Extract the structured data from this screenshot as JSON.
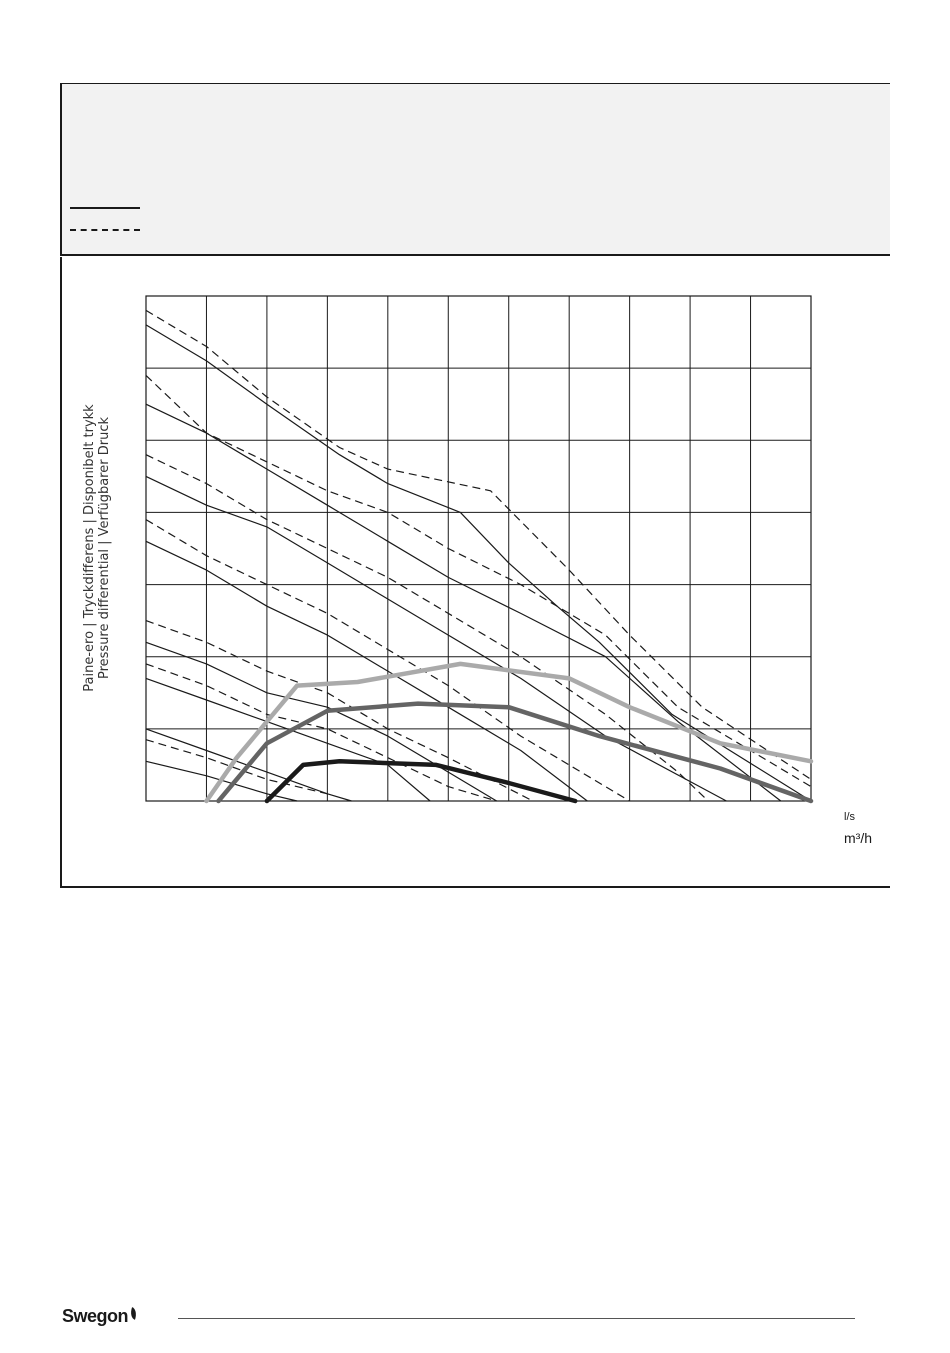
{
  "brand": {
    "name": "Swegon",
    "logo_icon": "leaf-icon"
  },
  "chart_data": {
    "type": "line",
    "title": "",
    "ylabel_lines": [
      "Paine-ero | Tryckdifferens | Disponibelt trykk",
      "Pressure differential | Verfügbarer Druck"
    ],
    "xlabel_units": [
      "l/s",
      "m³/h"
    ],
    "grid": true,
    "grid_columns": 11,
    "grid_rows": 7,
    "xlim": [
      0,
      11
    ],
    "ylim": [
      0,
      7
    ],
    "legend": [
      {
        "style": "solid",
        "label": ""
      },
      {
        "style": "dashed",
        "label": ""
      }
    ],
    "fan_curves": [
      {
        "style": "solid",
        "points": [
          [
            0,
            6.6
          ],
          [
            1.0,
            6.1
          ],
          [
            2.0,
            5.5
          ],
          [
            3.2,
            4.8
          ],
          [
            4.0,
            4.4
          ],
          [
            5.2,
            4.0
          ],
          [
            6.0,
            3.3
          ],
          [
            6.8,
            2.7
          ],
          [
            7.5,
            2.2
          ],
          [
            8.7,
            1.2
          ],
          [
            11.0,
            0
          ]
        ]
      },
      {
        "style": "dashed",
        "points": [
          [
            0,
            6.8
          ],
          [
            1.0,
            6.3
          ],
          [
            2.0,
            5.6
          ],
          [
            3.2,
            4.9
          ],
          [
            4.0,
            4.6
          ],
          [
            5.7,
            4.3
          ],
          [
            7.0,
            3.2
          ],
          [
            8.0,
            2.3
          ],
          [
            9.2,
            1.3
          ],
          [
            11.0,
            0.3
          ]
        ]
      },
      {
        "style": "solid",
        "points": [
          [
            0,
            5.5
          ],
          [
            1.0,
            5.1
          ],
          [
            2.0,
            4.6
          ],
          [
            3.0,
            4.1
          ],
          [
            4.0,
            3.6
          ],
          [
            5.0,
            3.1
          ],
          [
            6.2,
            2.6
          ],
          [
            7.6,
            2.0
          ],
          [
            8.8,
            1.1
          ],
          [
            10.5,
            0
          ]
        ]
      },
      {
        "style": "dashed",
        "points": [
          [
            0,
            5.9
          ],
          [
            1.0,
            5.1
          ],
          [
            2.0,
            4.7
          ],
          [
            3.0,
            4.3
          ],
          [
            4.0,
            4.0
          ],
          [
            5.0,
            3.5
          ],
          [
            6.2,
            3.0
          ],
          [
            7.6,
            2.3
          ],
          [
            8.8,
            1.3
          ],
          [
            11.0,
            0.2
          ]
        ]
      },
      {
        "style": "solid",
        "points": [
          [
            0,
            4.5
          ],
          [
            1.0,
            4.1
          ],
          [
            2.0,
            3.8
          ],
          [
            3.0,
            3.3
          ],
          [
            4.0,
            2.8
          ],
          [
            5.0,
            2.3
          ],
          [
            6.2,
            1.7
          ],
          [
            7.6,
            0.9
          ],
          [
            9.6,
            0
          ]
        ]
      },
      {
        "style": "dashed",
        "points": [
          [
            0,
            4.8
          ],
          [
            1.0,
            4.4
          ],
          [
            2.0,
            3.9
          ],
          [
            3.0,
            3.5
          ],
          [
            4.0,
            3.1
          ],
          [
            5.0,
            2.6
          ],
          [
            6.2,
            2.0
          ],
          [
            7.6,
            1.2
          ],
          [
            8.8,
            0.4
          ],
          [
            9.3,
            0
          ]
        ]
      },
      {
        "style": "solid",
        "points": [
          [
            0,
            3.6
          ],
          [
            1.0,
            3.2
          ],
          [
            2.0,
            2.7
          ],
          [
            3.0,
            2.3
          ],
          [
            4.0,
            1.8
          ],
          [
            5.0,
            1.3
          ],
          [
            6.2,
            0.7
          ],
          [
            7.3,
            0
          ]
        ]
      },
      {
        "style": "dashed",
        "points": [
          [
            0,
            3.9
          ],
          [
            1.0,
            3.4
          ],
          [
            2.0,
            3.0
          ],
          [
            3.0,
            2.6
          ],
          [
            4.0,
            2.1
          ],
          [
            5.0,
            1.6
          ],
          [
            6.2,
            0.9
          ],
          [
            8.0,
            0
          ]
        ]
      },
      {
        "style": "solid",
        "points": [
          [
            0,
            2.2
          ],
          [
            1.0,
            1.9
          ],
          [
            2.0,
            1.5
          ],
          [
            3.0,
            1.3
          ],
          [
            4.0,
            0.9
          ],
          [
            5.0,
            0.4
          ],
          [
            5.8,
            0
          ]
        ]
      },
      {
        "style": "dashed",
        "points": [
          [
            0,
            2.5
          ],
          [
            1.0,
            2.2
          ],
          [
            2.0,
            1.8
          ],
          [
            3.0,
            1.5
          ],
          [
            4.0,
            1.0
          ],
          [
            5.0,
            0.6
          ],
          [
            6.4,
            0
          ]
        ]
      },
      {
        "style": "solid",
        "points": [
          [
            0,
            1.7
          ],
          [
            1.0,
            1.4
          ],
          [
            2.0,
            1.1
          ],
          [
            3.0,
            0.8
          ],
          [
            4.0,
            0.5
          ],
          [
            4.7,
            0
          ]
        ]
      },
      {
        "style": "dashed",
        "points": [
          [
            0,
            1.9
          ],
          [
            1.0,
            1.6
          ],
          [
            2.0,
            1.2
          ],
          [
            3.0,
            1.0
          ],
          [
            4.0,
            0.6
          ],
          [
            5.0,
            0.2
          ],
          [
            5.8,
            0
          ]
        ]
      },
      {
        "style": "solid",
        "points": [
          [
            0,
            1.0
          ],
          [
            1.0,
            0.7
          ],
          [
            2.0,
            0.4
          ],
          [
            3.0,
            0.1
          ],
          [
            3.4,
            0
          ]
        ]
      },
      {
        "style": "dashed",
        "points": [
          [
            0,
            0.85
          ],
          [
            1.0,
            0.6
          ],
          [
            2.0,
            0.3
          ],
          [
            3.0,
            0.1
          ]
        ]
      },
      {
        "style": "solid",
        "points": [
          [
            0,
            0.55
          ],
          [
            1.0,
            0.35
          ],
          [
            2.0,
            0.1
          ],
          [
            2.5,
            0
          ]
        ]
      }
    ],
    "series": [
      {
        "color": "#aaaaaa",
        "points": [
          [
            1.0,
            0
          ],
          [
            1.5,
            0.6
          ],
          [
            2.5,
            1.6
          ],
          [
            3.5,
            1.65
          ],
          [
            5.2,
            1.9
          ],
          [
            7.0,
            1.7
          ],
          [
            8.0,
            1.3
          ],
          [
            9.5,
            0.8
          ],
          [
            11.0,
            0.55
          ]
        ]
      },
      {
        "color": "#646464",
        "points": [
          [
            1.2,
            0
          ],
          [
            2.0,
            0.8
          ],
          [
            3.0,
            1.25
          ],
          [
            4.5,
            1.35
          ],
          [
            6.0,
            1.3
          ],
          [
            7.5,
            0.9
          ],
          [
            9.5,
            0.45
          ],
          [
            11.0,
            0
          ]
        ]
      },
      {
        "color": "#1a1a1a",
        "points": [
          [
            2.0,
            0
          ],
          [
            2.6,
            0.5
          ],
          [
            3.2,
            0.55
          ],
          [
            4.8,
            0.5
          ],
          [
            6.0,
            0.25
          ],
          [
            7.1,
            0
          ]
        ]
      }
    ]
  }
}
